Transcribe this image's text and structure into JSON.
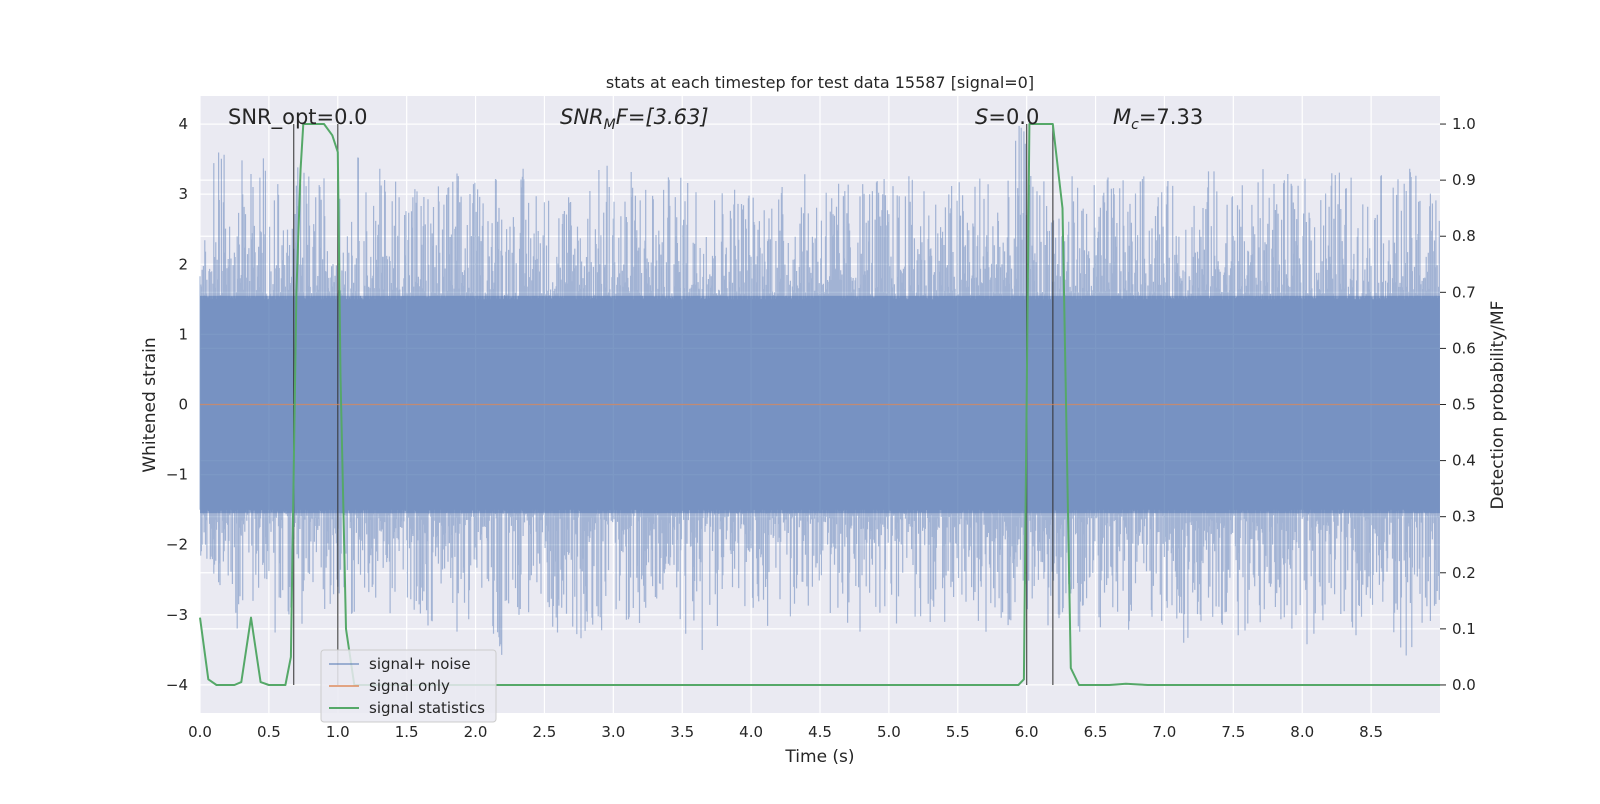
{
  "chart_data": {
    "type": "line",
    "title": "stats at each timestep for test data 15587 [signal=0]",
    "xlabel": "Time (s)",
    "ylabel_left": "Whitened strain",
    "ylabel_right": "Detection probability/MF",
    "xlim": [
      0.0,
      9.0
    ],
    "ylim_left": [
      -4.4,
      4.4
    ],
    "ylim_right": [
      -0.05,
      1.05
    ],
    "x_ticks": [
      0.0,
      0.5,
      1.0,
      1.5,
      2.0,
      2.5,
      3.0,
      3.5,
      4.0,
      4.5,
      5.0,
      5.5,
      6.0,
      6.5,
      7.0,
      7.5,
      8.0,
      8.5
    ],
    "x_tick_labels": [
      "0.0",
      "0.5",
      "1.0",
      "1.5",
      "2.0",
      "2.5",
      "3.0",
      "3.5",
      "4.0",
      "4.5",
      "5.0",
      "5.5",
      "6.0",
      "6.5",
      "7.0",
      "7.5",
      "8.0",
      "8.5"
    ],
    "y_left_ticks": [
      -4,
      -3,
      -2,
      -1,
      0,
      1,
      2,
      3,
      4
    ],
    "y_left_tick_labels": [
      "−4",
      "−3",
      "−2",
      "−1",
      "0",
      "1",
      "2",
      "3",
      "4"
    ],
    "y_right_ticks": [
      0.0,
      0.1,
      0.2,
      0.3,
      0.4,
      0.5,
      0.6,
      0.7,
      0.8,
      0.9,
      1.0
    ],
    "y_right_tick_labels": [
      "0.0",
      "0.1",
      "0.2",
      "0.3",
      "0.4",
      "0.5",
      "0.6",
      "0.7",
      "0.8",
      "0.9",
      "1.0"
    ],
    "grid": true,
    "legend_position": "lower-left",
    "annotations": {
      "snr_opt": "SNR_opt=0.0",
      "snr_mf_name": "SNR",
      "snr_mf_sub": "M",
      "snr_mf_tail": "F=[3.63]",
      "s_name": "S",
      "s_value": "=0.0",
      "mc_name": "M",
      "mc_sub": "c",
      "mc_value": "=7.33"
    },
    "vertical_markers": [
      0.68,
      1.0,
      6.0,
      6.19
    ],
    "series": [
      {
        "name": "signal+ noise",
        "color": "#4c72b0",
        "axis": "left",
        "note": "dense noise trace, 0-9 s",
        "envelope_upper": [
          2.5,
          3.6,
          3.3,
          3.7,
          3.6,
          3.2,
          2.9,
          3.4,
          3.2,
          3.4,
          3.0,
          3.6,
          3.2,
          3.4,
          3.4,
          3.4,
          3.2,
          3.2,
          3.4,
          3.3,
          3.1,
          3.5,
          3.0,
          3.4,
          3.3,
          3.1,
          3.2,
          3.0,
          3.4,
          3.6,
          3.3,
          3.4,
          3.4,
          3.1,
          3.3,
          3.5,
          3.4,
          3.2,
          3.3,
          3.2,
          3.1,
          3.4,
          3.2,
          3.3,
          3.4,
          3.4,
          3.2,
          3.3,
          3.4,
          3.3,
          3.2,
          3.3,
          3.4,
          3.1,
          3.2,
          3.3,
          3.4,
          3.4,
          3.2,
          4.0,
          3.3,
          3.4,
          3.2,
          3.3,
          3.2,
          3.3,
          3.4,
          3.2,
          3.3,
          3.3,
          3.2,
          3.3,
          3.3,
          3.4,
          3.3,
          3.2,
          3.2,
          3.4,
          3.3,
          3.2,
          3.3,
          3.3,
          3.4,
          3.3,
          3.2,
          3.3,
          3.3,
          3.4,
          3.3,
          3.3
        ],
        "envelope_lower": [
          -2.6,
          -2.8,
          -3.2,
          -2.9,
          -2.7,
          -3.3,
          -3.0,
          -3.2,
          -2.8,
          -3.0,
          -2.7,
          -3.1,
          -2.8,
          -3.0,
          -3.1,
          -3.0,
          -3.2,
          -2.9,
          -3.3,
          -3.1,
          -2.9,
          -3.7,
          -3.0,
          -3.1,
          -2.9,
          -3.3,
          -3.0,
          -3.4,
          -3.2,
          -3.3,
          -3.1,
          -3.3,
          -3.0,
          -3.2,
          -3.1,
          -3.4,
          -3.8,
          -3.2,
          -3.1,
          -3.3,
          -3.0,
          -3.2,
          -3.1,
          -3.2,
          -3.0,
          -3.1,
          -3.0,
          -3.3,
          -3.2,
          -3.0,
          -3.3,
          -3.1,
          -3.2,
          -3.3,
          -3.1,
          -3.0,
          -3.3,
          -3.7,
          -3.2,
          -3.0,
          -3.4,
          -3.2,
          -3.1,
          -3.3,
          -3.0,
          -3.2,
          -3.4,
          -3.3,
          -3.1,
          -3.2,
          -3.3,
          -3.4,
          -3.2,
          -3.1,
          -3.2,
          -3.3,
          -3.2,
          -3.4,
          -3.1,
          -3.2,
          -3.6,
          -3.1,
          -3.2,
          -3.4,
          -3.3,
          -3.2,
          -3.3,
          -3.7,
          -3.2,
          -3.3
        ]
      },
      {
        "name": "signal only",
        "color": "#dd8452",
        "axis": "left",
        "x": [
          0.0,
          9.0
        ],
        "y": [
          0.0,
          0.0
        ]
      },
      {
        "name": "signal statistics",
        "color": "#55a868",
        "axis": "right",
        "x": [
          0.0,
          0.06,
          0.12,
          0.25,
          0.3,
          0.37,
          0.44,
          0.5,
          0.62,
          0.66,
          0.7,
          0.73,
          0.75,
          0.79,
          0.9,
          0.96,
          1.0,
          1.02,
          1.06,
          1.12,
          2.0,
          4.0,
          5.0,
          5.94,
          5.98,
          6.02,
          6.08,
          6.14,
          6.19,
          6.26,
          6.32,
          6.38,
          6.6,
          6.72,
          6.88,
          7.5,
          8.0,
          9.0
        ],
        "y": [
          0.12,
          0.01,
          0.0,
          0.0,
          0.005,
          0.12,
          0.005,
          0.0,
          0.0,
          0.05,
          0.7,
          0.92,
          1.0,
          1.0,
          1.0,
          0.98,
          0.95,
          0.55,
          0.1,
          0.0,
          0.0,
          0.0,
          0.0,
          0.0,
          0.01,
          1.0,
          1.0,
          1.0,
          1.0,
          0.85,
          0.03,
          0.0,
          0.0,
          0.002,
          0.0,
          0.0,
          0.0,
          0.0
        ]
      }
    ]
  }
}
